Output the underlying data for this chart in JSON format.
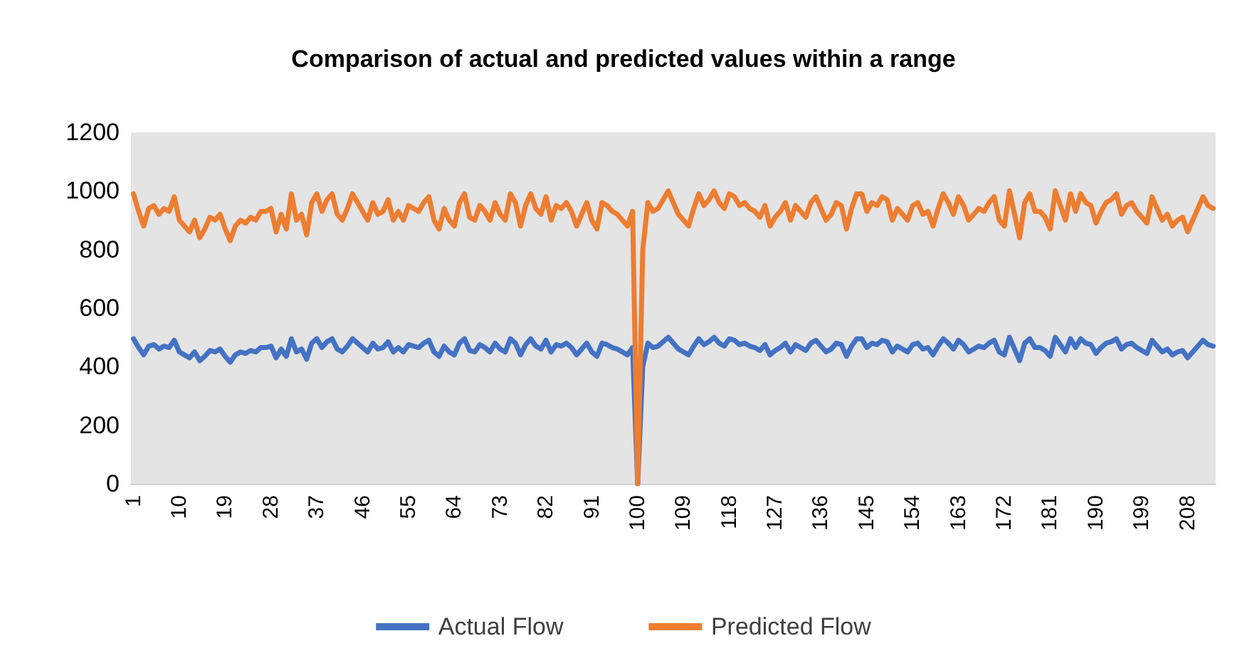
{
  "chart_data": {
    "type": "line",
    "title": "Comparison of actual and predicted values within a range",
    "categories": [
      "1",
      null,
      null,
      null,
      null,
      null,
      null,
      null,
      null,
      "10",
      null,
      null,
      null,
      null,
      null,
      null,
      null,
      null,
      "19",
      null,
      null,
      null,
      null,
      null,
      null,
      null,
      null,
      "28",
      null,
      null,
      null,
      null,
      null,
      null,
      null,
      null,
      "37",
      null,
      null,
      null,
      null,
      null,
      null,
      null,
      null,
      "46",
      null,
      null,
      null,
      null,
      null,
      null,
      null,
      null,
      "55",
      null,
      null,
      null,
      null,
      null,
      null,
      null,
      null,
      "64",
      null,
      null,
      null,
      null,
      null,
      null,
      null,
      null,
      "73",
      null,
      null,
      null,
      null,
      null,
      null,
      null,
      null,
      "82",
      null,
      null,
      null,
      null,
      null,
      null,
      null,
      null,
      "91",
      null,
      null,
      null,
      null,
      null,
      null,
      null,
      null,
      "100",
      null,
      null,
      null,
      null,
      null,
      null,
      null,
      null,
      "109",
      null,
      null,
      null,
      null,
      null,
      null,
      null,
      null,
      "118",
      null,
      null,
      null,
      null,
      null,
      null,
      null,
      null,
      "127",
      null,
      null,
      null,
      null,
      null,
      null,
      null,
      null,
      "136",
      null,
      null,
      null,
      null,
      null,
      null,
      null,
      null,
      "145",
      null,
      null,
      null,
      null,
      null,
      null,
      null,
      null,
      "154",
      null,
      null,
      null,
      null,
      null,
      null,
      null,
      null,
      "163",
      null,
      null,
      null,
      null,
      null,
      null,
      null,
      null,
      "172",
      null,
      null,
      null,
      null,
      null,
      null,
      null,
      null,
      "181",
      null,
      null,
      null,
      null,
      null,
      null,
      null,
      null,
      "190",
      null,
      null,
      null,
      null,
      null,
      null,
      null,
      null,
      "199",
      null,
      null,
      null,
      null,
      null,
      null,
      null,
      null,
      "208",
      null,
      null,
      null,
      null,
      null
    ],
    "series": [
      {
        "name": "Actual Flow",
        "color": "#4472c4",
        "values": [
          495,
          465,
          440,
          470,
          475,
          460,
          470,
          465,
          490,
          450,
          440,
          430,
          450,
          420,
          435,
          455,
          450,
          460,
          435,
          415,
          440,
          450,
          445,
          455,
          450,
          465,
          465,
          470,
          430,
          460,
          435,
          495,
          450,
          460,
          425,
          480,
          495,
          465,
          485,
          495,
          460,
          450,
          470,
          495,
          480,
          465,
          450,
          480,
          460,
          465,
          485,
          450,
          465,
          450,
          475,
          470,
          465,
          480,
          490,
          450,
          435,
          470,
          450,
          440,
          480,
          495,
          455,
          450,
          475,
          465,
          450,
          480,
          460,
          450,
          495,
          480,
          440,
          475,
          495,
          470,
          460,
          490,
          450,
          475,
          470,
          480,
          465,
          440,
          460,
          480,
          450,
          435,
          480,
          475,
          465,
          460,
          450,
          440,
          465,
          0,
          400,
          480,
          465,
          470,
          485,
          500,
          480,
          460,
          450,
          440,
          470,
          495,
          475,
          485,
          500,
          480,
          470,
          495,
          490,
          475,
          480,
          470,
          465,
          455,
          475,
          440,
          455,
          465,
          480,
          450,
          475,
          465,
          455,
          480,
          490,
          470,
          450,
          460,
          480,
          475,
          435,
          470,
          495,
          495,
          465,
          480,
          475,
          490,
          485,
          450,
          470,
          460,
          450,
          475,
          480,
          460,
          465,
          440,
          470,
          495,
          480,
          460,
          490,
          475,
          450,
          460,
          470,
          465,
          480,
          490,
          450,
          440,
          500,
          460,
          420,
          480,
          495,
          465,
          465,
          455,
          435,
          500,
          475,
          450,
          495,
          465,
          495,
          480,
          475,
          445,
          465,
          480,
          485,
          495,
          460,
          475,
          480,
          465,
          455,
          445,
          490,
          470,
          450,
          460,
          440,
          450,
          455,
          430,
          450,
          470,
          490,
          475,
          470
        ]
      },
      {
        "name": "Predicted Flow",
        "color": "#ed7d31",
        "values": [
          990,
          930,
          880,
          940,
          950,
          920,
          940,
          930,
          980,
          900,
          880,
          860,
          900,
          840,
          870,
          910,
          900,
          920,
          870,
          830,
          880,
          900,
          890,
          910,
          900,
          930,
          930,
          940,
          860,
          920,
          870,
          990,
          900,
          920,
          850,
          960,
          990,
          930,
          970,
          990,
          920,
          900,
          940,
          990,
          960,
          930,
          900,
          960,
          920,
          930,
          970,
          900,
          930,
          900,
          950,
          940,
          930,
          960,
          980,
          900,
          870,
          940,
          900,
          880,
          960,
          990,
          910,
          900,
          950,
          930,
          900,
          960,
          920,
          900,
          990,
          960,
          880,
          950,
          990,
          940,
          920,
          980,
          900,
          950,
          940,
          960,
          930,
          880,
          920,
          960,
          900,
          870,
          960,
          950,
          930,
          920,
          900,
          880,
          930,
          0,
          800,
          960,
          930,
          940,
          970,
          1000,
          960,
          920,
          900,
          880,
          940,
          990,
          950,
          970,
          1000,
          960,
          940,
          990,
          980,
          950,
          960,
          940,
          930,
          910,
          950,
          880,
          910,
          930,
          960,
          900,
          950,
          930,
          910,
          960,
          980,
          940,
          900,
          920,
          960,
          950,
          870,
          940,
          990,
          990,
          930,
          960,
          950,
          980,
          970,
          900,
          940,
          920,
          900,
          950,
          960,
          920,
          930,
          880,
          940,
          990,
          960,
          920,
          980,
          950,
          900,
          920,
          940,
          930,
          960,
          980,
          900,
          880,
          1000,
          920,
          840,
          960,
          990,
          930,
          930,
          910,
          870,
          1000,
          950,
          900,
          990,
          930,
          990,
          960,
          950,
          890,
          930,
          960,
          970,
          990,
          920,
          950,
          960,
          930,
          910,
          890,
          980,
          940,
          900,
          920,
          880,
          900,
          910,
          860,
          900,
          940,
          980,
          950,
          940
        ]
      }
    ],
    "ylim": [
      0,
      1200
    ],
    "yticks": [
      0,
      200,
      400,
      600,
      800,
      1000,
      1200
    ],
    "legend": "bottom",
    "marker": "none",
    "line_style": "solid"
  }
}
